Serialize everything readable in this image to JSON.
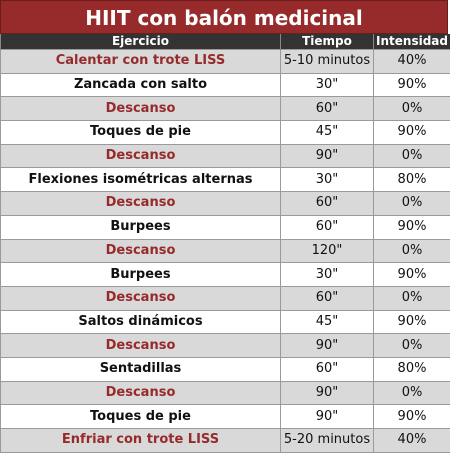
{
  "title": "HIIT con balón medicinal",
  "columns": {
    "exercise": "Ejercicio",
    "time": "Tiempo",
    "intensity": "Intensidad"
  },
  "colors": {
    "title_bg": "#972b2b",
    "header_bg": "#333333",
    "alt_row_bg": "#d9d9d9",
    "accent_text": "#972b2b"
  },
  "rows": [
    {
      "exercise": "Calentar con trote LISS",
      "time": "5-10 minutos",
      "intensity": "40%",
      "accent": true
    },
    {
      "exercise": "Zancada con salto",
      "time": "30\"",
      "intensity": "90%",
      "accent": false
    },
    {
      "exercise": "Descanso",
      "time": "60\"",
      "intensity": "0%",
      "accent": true
    },
    {
      "exercise": "Toques de pie",
      "time": "45\"",
      "intensity": "90%",
      "accent": false
    },
    {
      "exercise": "Descanso",
      "time": "90\"",
      "intensity": "0%",
      "accent": true
    },
    {
      "exercise": "Flexiones isométricas alternas",
      "time": "30\"",
      "intensity": "80%",
      "accent": false
    },
    {
      "exercise": "Descanso",
      "time": "60\"",
      "intensity": "0%",
      "accent": true
    },
    {
      "exercise": "Burpees",
      "time": "60\"",
      "intensity": "90%",
      "accent": false
    },
    {
      "exercise": "Descanso",
      "time": "120\"",
      "intensity": "0%",
      "accent": true
    },
    {
      "exercise": "Burpees",
      "time": "30\"",
      "intensity": "90%",
      "accent": false
    },
    {
      "exercise": "Descanso",
      "time": "60\"",
      "intensity": "0%",
      "accent": true
    },
    {
      "exercise": "Saltos dinámicos",
      "time": "45\"",
      "intensity": "90%",
      "accent": false
    },
    {
      "exercise": "Descanso",
      "time": "90\"",
      "intensity": "0%",
      "accent": true
    },
    {
      "exercise": "Sentadillas",
      "time": "60\"",
      "intensity": "80%",
      "accent": false
    },
    {
      "exercise": "Descanso",
      "time": "90\"",
      "intensity": "0%",
      "accent": true
    },
    {
      "exercise": "Toques de pie",
      "time": "90\"",
      "intensity": "90%",
      "accent": false
    },
    {
      "exercise": "Enfriar con trote LISS",
      "time": "5-20 minutos",
      "intensity": "40%",
      "accent": true
    }
  ]
}
